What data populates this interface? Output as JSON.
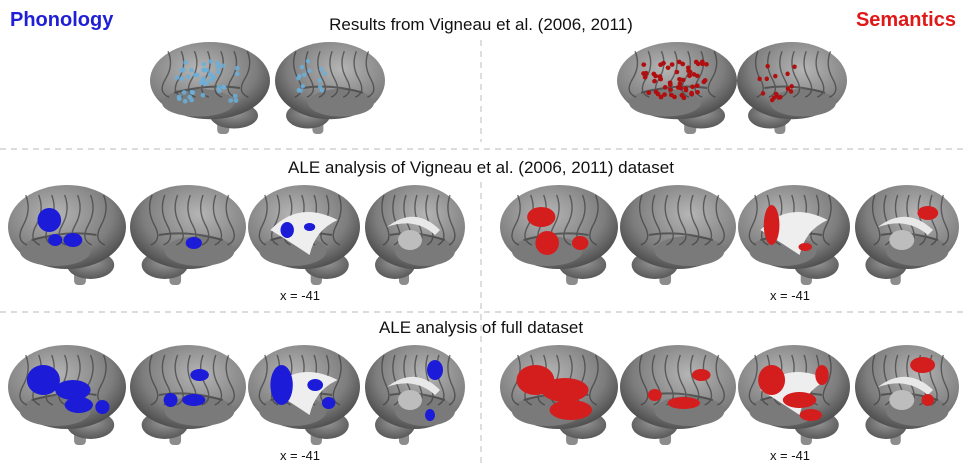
{
  "header": {
    "left_label": "Phonology",
    "right_label": "Semantics"
  },
  "panels": [
    {
      "title": "Results from Vigneau et al. (2006, 2011)"
    },
    {
      "title": "ALE analysis of Vigneau et al. (2006, 2011) dataset",
      "left_caption": "x = -41",
      "right_caption": "x = -41"
    },
    {
      "title": "ALE analysis of full dataset",
      "left_caption": "x = -41",
      "right_caption": "x = -41"
    }
  ]
}
